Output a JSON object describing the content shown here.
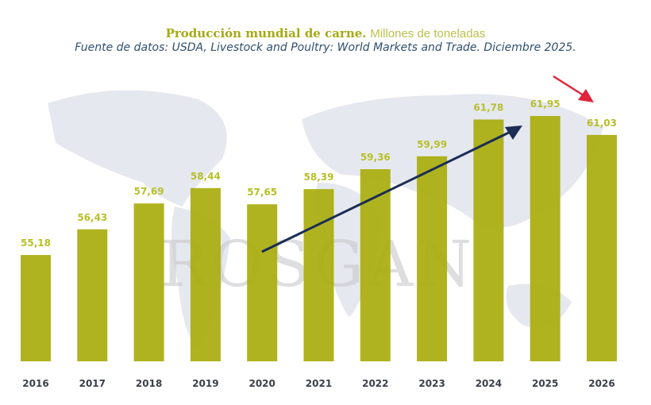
{
  "chart_data": {
    "type": "bar",
    "title": "Producción mundial de carne.",
    "subtitle_unit": "Millones de toneladas",
    "source": "Fuente de datos: USDA, Livestock and Poultry: World Markets and Trade. Diciembre 2025.",
    "watermark": "ROSGAN",
    "categories": [
      "2016",
      "2017",
      "2018",
      "2019",
      "2020",
      "2021",
      "2022",
      "2023",
      "2024",
      "2025",
      "2026"
    ],
    "values": [
      55.18,
      56.43,
      57.69,
      58.44,
      57.65,
      58.39,
      59.36,
      59.99,
      61.78,
      61.95,
      61.03
    ],
    "labels": [
      "55,18",
      "56,43",
      "57,69",
      "58,44",
      "57,65",
      "58,39",
      "59,36",
      "59,99",
      "61,78",
      "61,95",
      "61,03"
    ],
    "ylim": [
      50,
      64
    ],
    "xlabel": "",
    "ylabel": "",
    "colors": {
      "bar": "#a8ad0c",
      "label": "#b7bf2a",
      "trend_arrow": "#1b2d55",
      "down_arrow": "#e0243c"
    }
  }
}
